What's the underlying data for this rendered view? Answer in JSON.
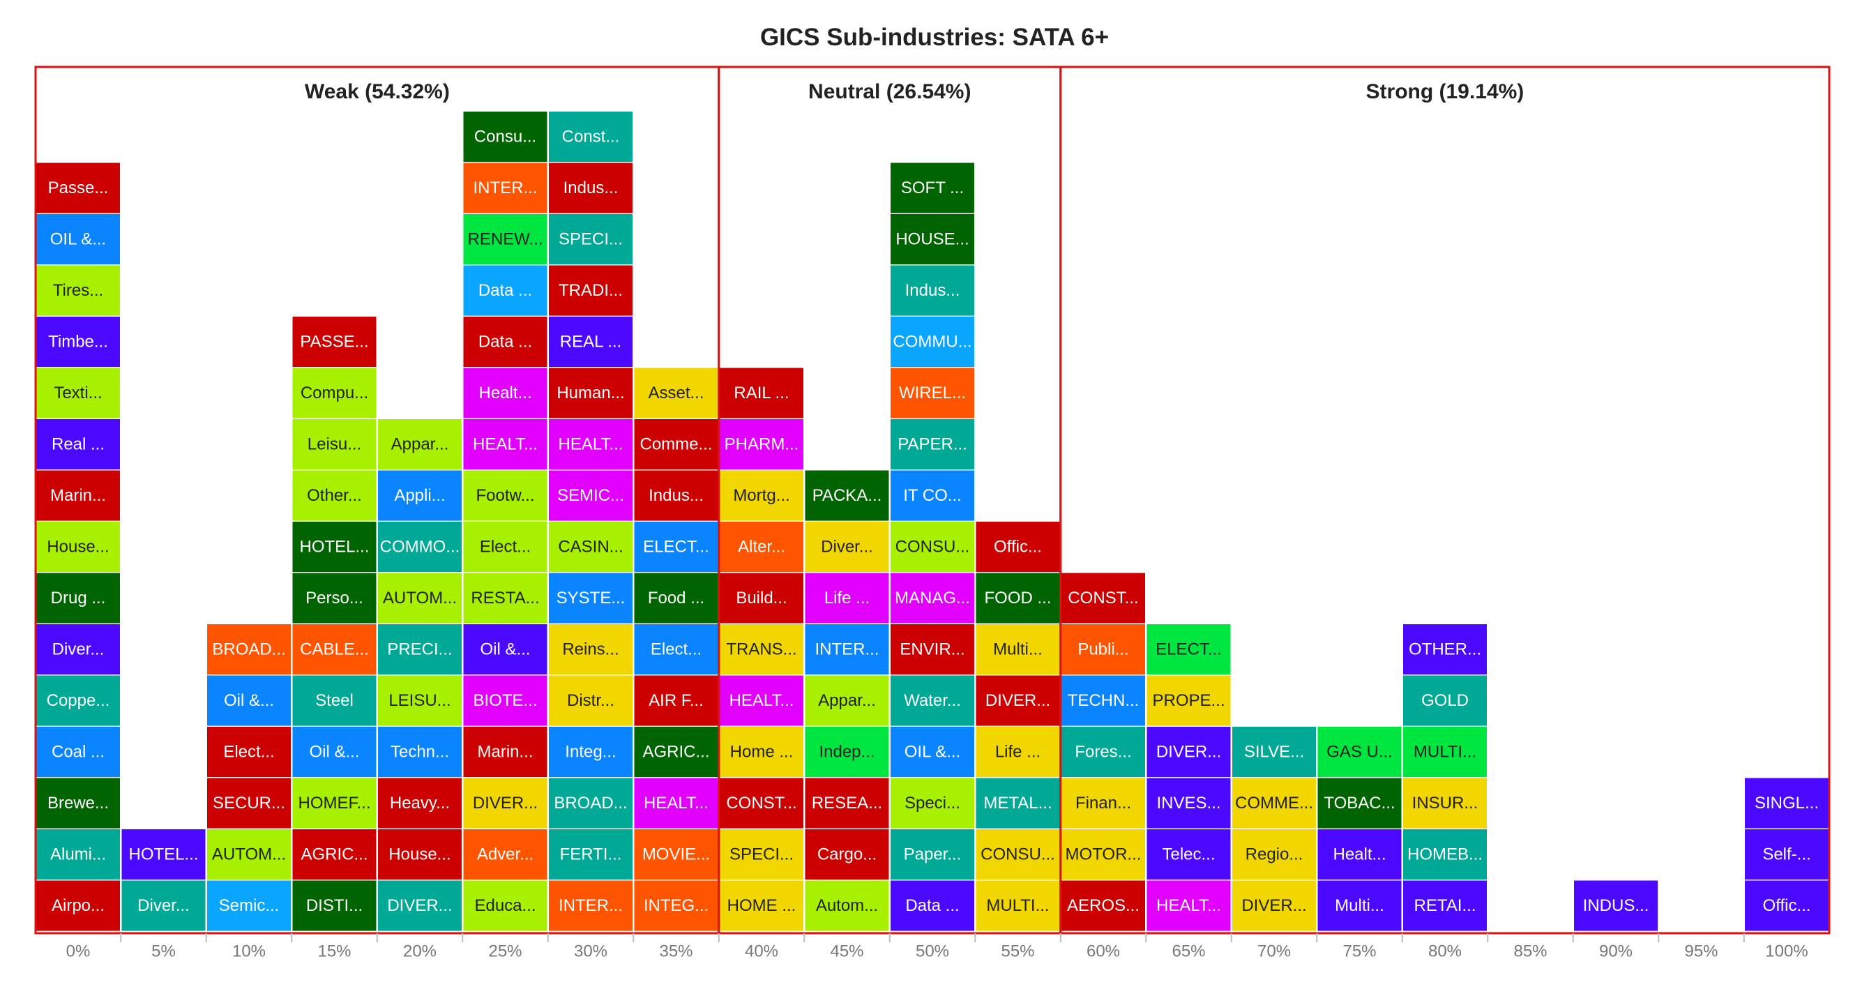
{
  "chart_data": {
    "type": "bar",
    "title": "GICS Sub-industries: SATA 6+",
    "xlabel": "",
    "ylabel": "",
    "grid": false,
    "categories": [
      "0%",
      "5%",
      "10%",
      "15%",
      "20%",
      "25%",
      "30%",
      "35%",
      "40%",
      "45%",
      "50%",
      "55%",
      "60%",
      "65%",
      "70%",
      "75%",
      "80%",
      "85%",
      "90%",
      "95%",
      "100%"
    ],
    "zones": [
      {
        "label": "Weak (54.32%)",
        "from_category": "0%",
        "to_category": "35%",
        "border_color": "#dd1111"
      },
      {
        "label": "Neutral (26.54%)",
        "from_category": "40%",
        "to_category": "55%",
        "border_color": "#dd1111"
      },
      {
        "label": "Strong (19.14%)",
        "from_category": "60%",
        "to_category": "100%",
        "border_color": "#dd1111"
      }
    ],
    "columns": [
      {
        "category": "0%",
        "count": 15,
        "items": [
          {
            "label": "Airpo...",
            "color": "#cc0000"
          },
          {
            "label": "Alumi...",
            "color": "#00a896"
          },
          {
            "label": "Brewe...",
            "color": "#006400"
          },
          {
            "label": "Coal ...",
            "color": "#0a84ff"
          },
          {
            "label": "Coppe...",
            "color": "#00a896"
          },
          {
            "label": "Diver...",
            "color": "#4b0aff"
          },
          {
            "label": "Drug ...",
            "color": "#006400"
          },
          {
            "label": "House...",
            "color": "#a7f000"
          },
          {
            "label": "Marin...",
            "color": "#cc0000"
          },
          {
            "label": "Real ...",
            "color": "#4b0aff"
          },
          {
            "label": "Texti...",
            "color": "#a7f000"
          },
          {
            "label": "Timbe...",
            "color": "#4b0aff"
          },
          {
            "label": "Tires...",
            "color": "#a7f000"
          },
          {
            "label": "OIL &...",
            "color": "#0a84ff"
          },
          {
            "label": "Passe...",
            "color": "#cc0000"
          }
        ]
      },
      {
        "category": "5%",
        "count": 2,
        "items": [
          {
            "label": "Diver...",
            "color": "#00a896"
          },
          {
            "label": "HOTEL...",
            "color": "#4b0aff"
          }
        ]
      },
      {
        "category": "10%",
        "count": 6,
        "items": [
          {
            "label": "Semic...",
            "color": "#0aa5ff"
          },
          {
            "label": "AUTOM...",
            "color": "#a7f000"
          },
          {
            "label": "SECUR...",
            "color": "#cc0000"
          },
          {
            "label": "Elect...",
            "color": "#cc0000"
          },
          {
            "label": "Oil &...",
            "color": "#0a84ff"
          },
          {
            "label": "BROAD...",
            "color": "#ff5500"
          }
        ]
      },
      {
        "category": "15%",
        "count": 12,
        "items": [
          {
            "label": "DISTI...",
            "color": "#006400"
          },
          {
            "label": "AGRIC...",
            "color": "#cc0000"
          },
          {
            "label": "HOMEF...",
            "color": "#a7f000"
          },
          {
            "label": "Oil &...",
            "color": "#0a84ff"
          },
          {
            "label": "Steel",
            "color": "#00a896"
          },
          {
            "label": "CABLE...",
            "color": "#ff5500"
          },
          {
            "label": "Perso...",
            "color": "#006400"
          },
          {
            "label": "HOTEL...",
            "color": "#006400"
          },
          {
            "label": "Other...",
            "color": "#a7f000"
          },
          {
            "label": "Leisu...",
            "color": "#a7f000"
          },
          {
            "label": "Compu...",
            "color": "#a7f000"
          },
          {
            "label": "PASSE...",
            "color": "#cc0000"
          }
        ]
      },
      {
        "category": "20%",
        "count": 10,
        "items": [
          {
            "label": "DIVER...",
            "color": "#00a896"
          },
          {
            "label": "House...",
            "color": "#cc0000"
          },
          {
            "label": "Heavy...",
            "color": "#cc0000"
          },
          {
            "label": "Techn...",
            "color": "#0a84ff"
          },
          {
            "label": "LEISU...",
            "color": "#a7f000"
          },
          {
            "label": "PRECI...",
            "color": "#00a896"
          },
          {
            "label": "AUTOM...",
            "color": "#a7f000"
          },
          {
            "label": "COMMO...",
            "color": "#00a896"
          },
          {
            "label": "Appli...",
            "color": "#0a84ff"
          },
          {
            "label": "Appar...",
            "color": "#a7f000"
          }
        ]
      },
      {
        "category": "25%",
        "count": 16,
        "items": [
          {
            "label": "Educa...",
            "color": "#a7f000"
          },
          {
            "label": "Adver...",
            "color": "#ff5500"
          },
          {
            "label": "DIVER...",
            "color": "#f2d600"
          },
          {
            "label": "Marin...",
            "color": "#cc0000"
          },
          {
            "label": "BIOTE...",
            "color": "#e100ff"
          },
          {
            "label": "Oil &...",
            "color": "#4b0aff"
          },
          {
            "label": "RESTA...",
            "color": "#a7f000"
          },
          {
            "label": "Elect...",
            "color": "#a7f000"
          },
          {
            "label": "Footw...",
            "color": "#a7f000"
          },
          {
            "label": "HEALT...",
            "color": "#e100ff"
          },
          {
            "label": "Healt...",
            "color": "#e100ff"
          },
          {
            "label": "Data ...",
            "color": "#cc0000"
          },
          {
            "label": "Data ...",
            "color": "#0aa5ff"
          },
          {
            "label": "RENEW...",
            "color": "#00e640"
          },
          {
            "label": "INTER...",
            "color": "#ff5500"
          },
          {
            "label": "Consu...",
            "color": "#006400"
          }
        ]
      },
      {
        "category": "30%",
        "count": 16,
        "items": [
          {
            "label": "INTER...",
            "color": "#ff5500"
          },
          {
            "label": "FERTI...",
            "color": "#00a896"
          },
          {
            "label": "BROAD...",
            "color": "#00a896"
          },
          {
            "label": "Integ...",
            "color": "#0a84ff"
          },
          {
            "label": "Distr...",
            "color": "#f2d600"
          },
          {
            "label": "Reins...",
            "color": "#f2d600"
          },
          {
            "label": "SYSTE...",
            "color": "#0a84ff"
          },
          {
            "label": "CASIN...",
            "color": "#a7f000"
          },
          {
            "label": "SEMIC...",
            "color": "#e100ff"
          },
          {
            "label": "HEALT...",
            "color": "#e100ff"
          },
          {
            "label": "Human...",
            "color": "#cc0000"
          },
          {
            "label": "REAL ...",
            "color": "#4b0aff"
          },
          {
            "label": "TRADI...",
            "color": "#cc0000"
          },
          {
            "label": "SPECI...",
            "color": "#00a896"
          },
          {
            "label": "Indus...",
            "color": "#cc0000"
          },
          {
            "label": "Const...",
            "color": "#00a896"
          }
        ]
      },
      {
        "category": "35%",
        "count": 11,
        "items": [
          {
            "label": "INTEG...",
            "color": "#ff5500"
          },
          {
            "label": "MOVIE...",
            "color": "#ff5500"
          },
          {
            "label": "HEALT...",
            "color": "#e100ff"
          },
          {
            "label": "AGRIC...",
            "color": "#006400"
          },
          {
            "label": "AIR F...",
            "color": "#cc0000"
          },
          {
            "label": "Elect...",
            "color": "#0a84ff"
          },
          {
            "label": "Food ...",
            "color": "#006400"
          },
          {
            "label": "ELECT...",
            "color": "#0a84ff"
          },
          {
            "label": "Indus...",
            "color": "#cc0000"
          },
          {
            "label": "Comme...",
            "color": "#cc0000"
          },
          {
            "label": "Asset...",
            "color": "#f2d600"
          }
        ]
      },
      {
        "category": "40%",
        "count": 11,
        "items": [
          {
            "label": "HOME ...",
            "color": "#f2d600"
          },
          {
            "label": "SPECI...",
            "color": "#f2d600"
          },
          {
            "label": "CONST...",
            "color": "#cc0000"
          },
          {
            "label": "Home ...",
            "color": "#f2d600"
          },
          {
            "label": "HEALT...",
            "color": "#e100ff"
          },
          {
            "label": "TRANS...",
            "color": "#f2d600"
          },
          {
            "label": "Build...",
            "color": "#cc0000"
          },
          {
            "label": "Alter...",
            "color": "#ff5500"
          },
          {
            "label": "Mortg...",
            "color": "#f2d600"
          },
          {
            "label": "PHARM...",
            "color": "#e100ff"
          },
          {
            "label": "RAIL ...",
            "color": "#cc0000"
          }
        ]
      },
      {
        "category": "45%",
        "count": 9,
        "items": [
          {
            "label": "Autom...",
            "color": "#a7f000"
          },
          {
            "label": "Cargo...",
            "color": "#cc0000"
          },
          {
            "label": "RESEA...",
            "color": "#cc0000"
          },
          {
            "label": "Indep...",
            "color": "#00e640"
          },
          {
            "label": "Appar...",
            "color": "#a7f000"
          },
          {
            "label": "INTER...",
            "color": "#0a84ff"
          },
          {
            "label": "Life ...",
            "color": "#e100ff"
          },
          {
            "label": "Diver...",
            "color": "#f2d600"
          },
          {
            "label": "PACKA...",
            "color": "#006400"
          }
        ]
      },
      {
        "category": "50%",
        "count": 15,
        "items": [
          {
            "label": "Data ...",
            "color": "#4b0aff"
          },
          {
            "label": "Paper...",
            "color": "#00a896"
          },
          {
            "label": "Speci...",
            "color": "#a7f000"
          },
          {
            "label": "OIL &...",
            "color": "#0a84ff"
          },
          {
            "label": "Water...",
            "color": "#00a896"
          },
          {
            "label": "ENVIR...",
            "color": "#cc0000"
          },
          {
            "label": "MANAG...",
            "color": "#e100ff"
          },
          {
            "label": "CONSU...",
            "color": "#a7f000"
          },
          {
            "label": "IT CO...",
            "color": "#0a84ff"
          },
          {
            "label": "PAPER...",
            "color": "#00a896"
          },
          {
            "label": "WIREL...",
            "color": "#ff5500"
          },
          {
            "label": "COMMU...",
            "color": "#0aa5ff"
          },
          {
            "label": "Indus...",
            "color": "#00a896"
          },
          {
            "label": "HOUSE...",
            "color": "#006400"
          },
          {
            "label": "SOFT ...",
            "color": "#006400"
          }
        ]
      },
      {
        "category": "55%",
        "count": 8,
        "items": [
          {
            "label": "MULTI...",
            "color": "#f2d600"
          },
          {
            "label": "CONSU...",
            "color": "#f2d600"
          },
          {
            "label": "METAL...",
            "color": "#00a896"
          },
          {
            "label": "Life ...",
            "color": "#f2d600"
          },
          {
            "label": "DIVER...",
            "color": "#cc0000"
          },
          {
            "label": "Multi...",
            "color": "#f2d600"
          },
          {
            "label": "FOOD ...",
            "color": "#006400"
          },
          {
            "label": "Offic...",
            "color": "#cc0000"
          }
        ]
      },
      {
        "category": "60%",
        "count": 7,
        "items": [
          {
            "label": "AEROS...",
            "color": "#cc0000"
          },
          {
            "label": "MOTOR...",
            "color": "#f2d600"
          },
          {
            "label": "Finan...",
            "color": "#f2d600"
          },
          {
            "label": "Fores...",
            "color": "#00a896"
          },
          {
            "label": "TECHN...",
            "color": "#0a84ff"
          },
          {
            "label": "Publi...",
            "color": "#ff5500"
          },
          {
            "label": "CONST...",
            "color": "#cc0000"
          }
        ]
      },
      {
        "category": "65%",
        "count": 6,
        "items": [
          {
            "label": "HEALT...",
            "color": "#e100ff"
          },
          {
            "label": "Telec...",
            "color": "#4b0aff"
          },
          {
            "label": "INVES...",
            "color": "#4b0aff"
          },
          {
            "label": "DIVER...",
            "color": "#4b0aff"
          },
          {
            "label": "PROPE...",
            "color": "#f2d600"
          },
          {
            "label": "ELECT...",
            "color": "#00e640"
          }
        ]
      },
      {
        "category": "70%",
        "count": 4,
        "items": [
          {
            "label": "DIVER...",
            "color": "#f2d600"
          },
          {
            "label": "Regio...",
            "color": "#f2d600"
          },
          {
            "label": "COMME...",
            "color": "#f2d600"
          },
          {
            "label": "SILVE...",
            "color": "#00a896"
          }
        ]
      },
      {
        "category": "75%",
        "count": 4,
        "items": [
          {
            "label": "Multi...",
            "color": "#4b0aff"
          },
          {
            "label": "Healt...",
            "color": "#4b0aff"
          },
          {
            "label": "TOBAC...",
            "color": "#006400"
          },
          {
            "label": "GAS U...",
            "color": "#00e640"
          }
        ]
      },
      {
        "category": "80%",
        "count": 6,
        "items": [
          {
            "label": "RETAI...",
            "color": "#4b0aff"
          },
          {
            "label": "HOMEB...",
            "color": "#00a896"
          },
          {
            "label": "INSUR...",
            "color": "#f2d600"
          },
          {
            "label": "MULTI...",
            "color": "#00e640"
          },
          {
            "label": "GOLD",
            "color": "#00a896"
          },
          {
            "label": "OTHER...",
            "color": "#4b0aff"
          }
        ]
      },
      {
        "category": "85%",
        "count": 0,
        "items": []
      },
      {
        "category": "90%",
        "count": 1,
        "items": [
          {
            "label": "INDUS...",
            "color": "#4b0aff"
          }
        ]
      },
      {
        "category": "95%",
        "count": 0,
        "items": []
      },
      {
        "category": "100%",
        "count": 3,
        "items": [
          {
            "label": "Offic...",
            "color": "#4b0aff"
          },
          {
            "label": "Self-...",
            "color": "#4b0aff"
          },
          {
            "label": "SINGL...",
            "color": "#4b0aff"
          }
        ]
      }
    ]
  },
  "colors": {
    "zone_border": "#dd1111",
    "axis_text": "#777777",
    "title_text": "#222222",
    "dark_text": "#222222",
    "light_text": "#ffffff"
  }
}
